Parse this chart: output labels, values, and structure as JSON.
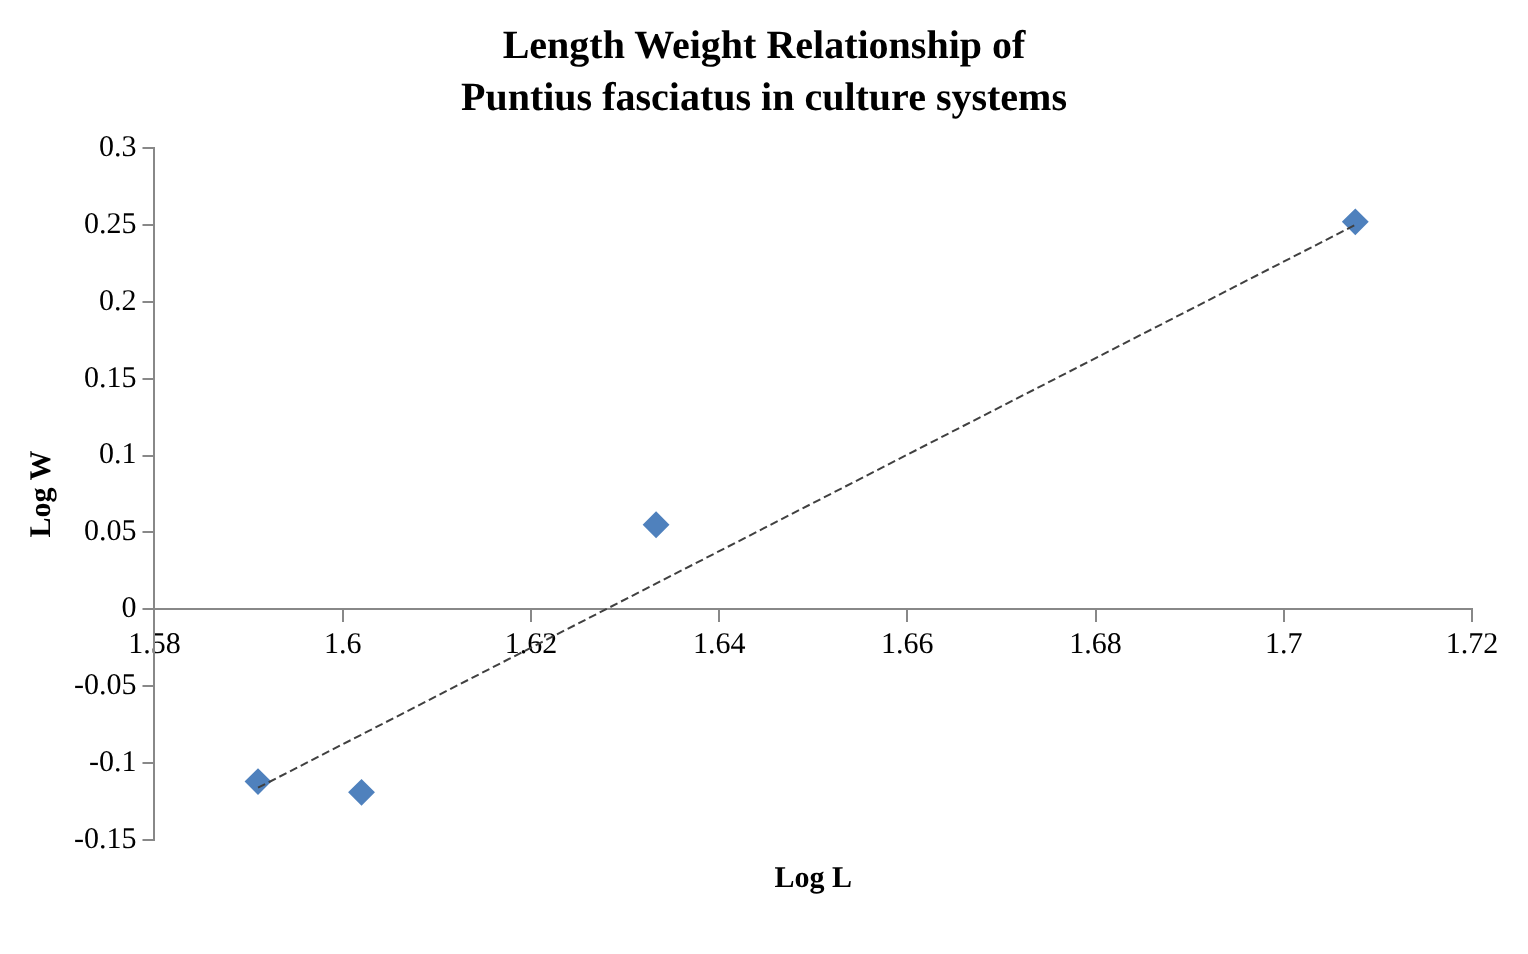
{
  "chart_data": {
    "type": "scatter",
    "title": "Length Weight Relationship of Puntius fasciatus in culture systems",
    "xlabel": "Log L",
    "ylabel": "Log W",
    "series": [
      {
        "type": "scatter",
        "color": "#4f81bd",
        "x": [
          1.591,
          1.602,
          1.6333,
          1.7076
        ],
        "values": [
          -0.112,
          -0.119,
          0.055,
          0.252
        ],
        "marker": "diamond"
      },
      {
        "type": "line",
        "color": "#404040",
        "x": [
          1.591,
          1.7076
        ],
        "values": [
          -0.116,
          0.25
        ],
        "marker": "none",
        "line_style": "dashed"
      }
    ],
    "xlim": [
      1.58,
      1.72
    ],
    "xticks": [
      1.58,
      1.6,
      1.62,
      1.64,
      1.66,
      1.68,
      1.7,
      1.72
    ],
    "ylim": [
      -0.15,
      0.3
    ],
    "yticks": [
      -0.15,
      -0.1,
      -0.05,
      0,
      0.05,
      0.1,
      0.15,
      0.2,
      0.25,
      0.3
    ],
    "grid": false,
    "legend": false
  }
}
